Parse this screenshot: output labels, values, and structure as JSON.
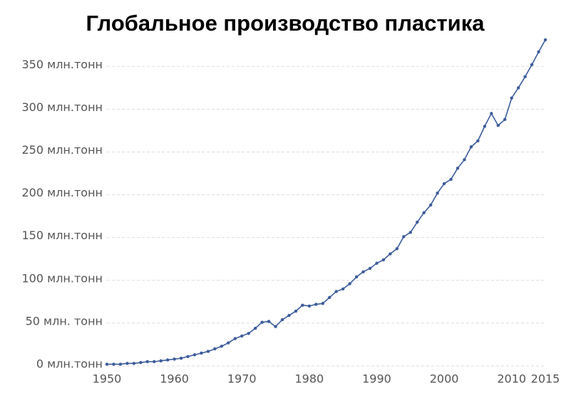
{
  "chart_data": {
    "type": "line",
    "title": "Глобальное производство пластика",
    "x": [
      1950,
      1951,
      1952,
      1953,
      1954,
      1955,
      1956,
      1957,
      1958,
      1959,
      1960,
      1961,
      1962,
      1963,
      1964,
      1965,
      1966,
      1967,
      1968,
      1969,
      1970,
      1971,
      1972,
      1973,
      1974,
      1975,
      1976,
      1977,
      1978,
      1979,
      1980,
      1981,
      1982,
      1983,
      1984,
      1985,
      1986,
      1987,
      1988,
      1989,
      1990,
      1991,
      1992,
      1993,
      1994,
      1995,
      1996,
      1997,
      1998,
      1999,
      2000,
      2001,
      2002,
      2003,
      2004,
      2005,
      2006,
      2007,
      2008,
      2009,
      2010,
      2011,
      2012,
      2013,
      2014,
      2015
    ],
    "series": [
      {
        "color": "#3d5c9c",
        "values": [
          2,
          2,
          2,
          3,
          3,
          4,
          5,
          5,
          6,
          7,
          8,
          9,
          11,
          13,
          15,
          17,
          20,
          23,
          27,
          32,
          35,
          38,
          44,
          51,
          52,
          46,
          54,
          59,
          64,
          71,
          70,
          72,
          73,
          80,
          87,
          90,
          96,
          104,
          110,
          114,
          120,
          124,
          131,
          137,
          151,
          156,
          168,
          179,
          188,
          202,
          213,
          218,
          231,
          241,
          256,
          263,
          280,
          295,
          281,
          288,
          313,
          325,
          338,
          352,
          367,
          381
        ]
      }
    ],
    "xlim": [
      1950,
      2015
    ],
    "xticks": [
      1950,
      1960,
      1970,
      1980,
      1990,
      2000,
      2010,
      2015
    ],
    "ylim": [
      0,
      381
    ],
    "yticks": [
      {
        "value": 0,
        "label": "0 млн.тонн"
      },
      {
        "value": 50,
        "label": "50 млн. тонн"
      },
      {
        "value": 100,
        "label": "100 млн.тонн"
      },
      {
        "value": 150,
        "label": "150 млн.тонн"
      },
      {
        "value": 200,
        "label": "200 млн.тонн"
      },
      {
        "value": 250,
        "label": "250 млн.тонн"
      },
      {
        "value": 300,
        "label": "300 млн.тонн"
      },
      {
        "value": 350,
        "label": "350 млн.тонн"
      }
    ],
    "grid": true
  }
}
